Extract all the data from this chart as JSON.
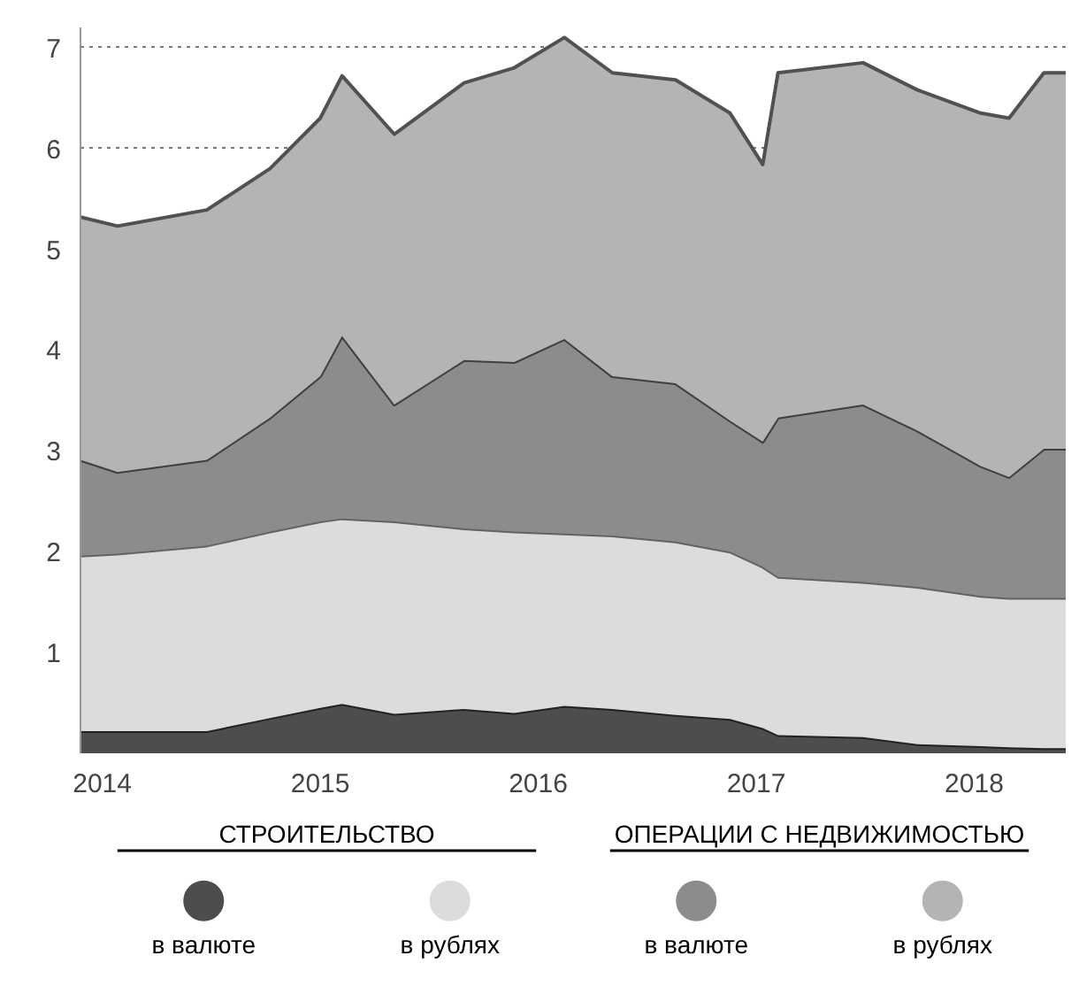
{
  "chart_data": {
    "type": "area",
    "stacked": true,
    "x": [
      2013.9,
      2014.07,
      2014.48,
      2014.77,
      2015.0,
      2015.1,
      2015.34,
      2015.66,
      2015.89,
      2016.12,
      2016.34,
      2016.63,
      2016.88,
      2017.03,
      2017.1,
      2017.49,
      2017.74,
      2018.03,
      2018.16,
      2018.32,
      2018.42
    ],
    "series": [
      {
        "name": "в валюте",
        "color": "#4d4d4d",
        "values": [
          0.22,
          0.22,
          0.22,
          0.35,
          0.45,
          0.49,
          0.39,
          0.44,
          0.4,
          0.47,
          0.44,
          0.38,
          0.34,
          0.25,
          0.18,
          0.16,
          0.09,
          0.07,
          0.06,
          0.05,
          0.05
        ]
      },
      {
        "name": "в рублях",
        "color": "#dcdcdc",
        "values": [
          1.74,
          1.76,
          1.84,
          1.85,
          1.85,
          1.84,
          1.91,
          1.79,
          1.8,
          1.71,
          1.72,
          1.72,
          1.66,
          1.6,
          1.57,
          1.54,
          1.56,
          1.49,
          1.48,
          1.49,
          1.49
        ]
      },
      {
        "name": "в валюте",
        "color": "#8c8c8c",
        "values": [
          0.95,
          0.81,
          0.85,
          1.13,
          1.44,
          1.81,
          1.16,
          1.67,
          1.68,
          1.93,
          1.58,
          1.57,
          1.3,
          1.24,
          1.58,
          1.76,
          1.55,
          1.29,
          1.2,
          1.48,
          1.48
        ]
      },
      {
        "name": "в рублях",
        "color": "#b4b4b4",
        "values": [
          2.41,
          2.44,
          2.48,
          2.47,
          2.56,
          2.58,
          2.68,
          2.75,
          2.92,
          2.99,
          3.01,
          3.01,
          3.05,
          2.75,
          3.42,
          3.39,
          3.38,
          3.5,
          3.56,
          3.73,
          3.73
        ]
      }
    ],
    "annotations": [
      "СТРОИТЕЛЬСТВО",
      "ОПЕРАЦИИ С НЕДВИЖИМОСТЬЮ"
    ],
    "xlim": [
      2013.9,
      2018.42
    ],
    "xticks": [
      2014,
      2015,
      2016,
      2017,
      2018
    ],
    "ylim": [
      0,
      7.2
    ],
    "yticks": [
      1,
      2,
      3,
      4,
      5,
      6,
      7
    ],
    "grid": "y",
    "legend": "bottom"
  }
}
